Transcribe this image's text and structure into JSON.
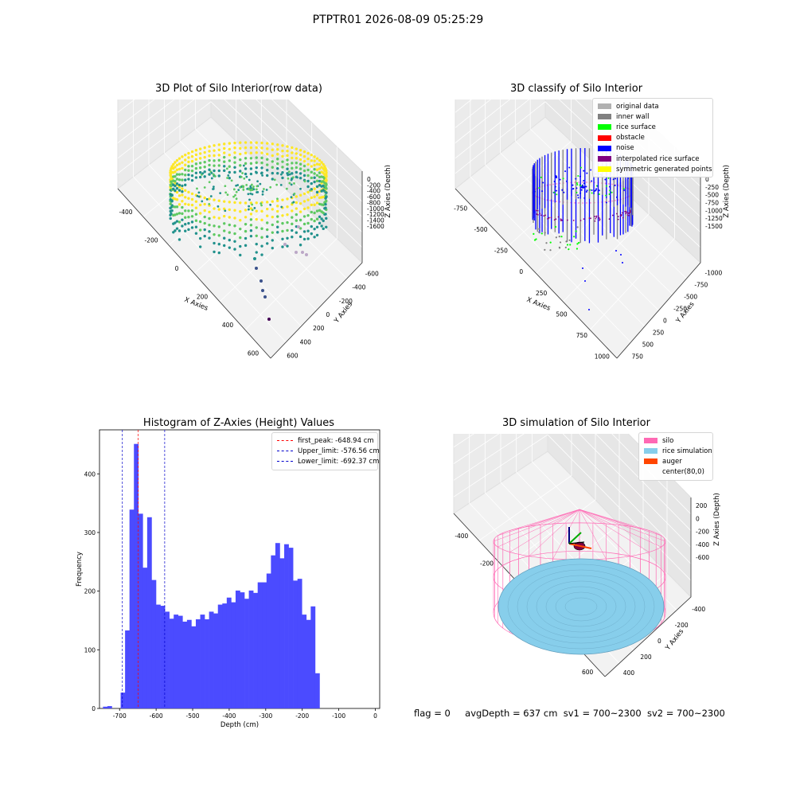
{
  "figure_title": "PTPTR01 2026-08-09 05:25:29",
  "footer": {
    "flag": "flag = 0",
    "avg_depth": "avgDepth = 637 cm",
    "sv1": "sv1 = 700~2300",
    "sv2": "sv2 = 700~2300"
  },
  "chart_data": [
    {
      "type": "scatter",
      "title": "3D Plot of Silo Interior(row data)",
      "xlabel": "X Axies",
      "ylabel": "Y Axies",
      "zlabel": "Z Axies (Depth)",
      "x_ticks": [
        "-400",
        "-200",
        "0",
        "200",
        "400",
        "600"
      ],
      "y_ticks": [
        "-600",
        "-400",
        "-200",
        "0",
        "200",
        "400",
        "600"
      ],
      "z_ticks": [
        "0",
        "-200",
        "-400",
        "-600",
        "-800",
        "-1000",
        "-1200",
        "-1400",
        "-1600"
      ],
      "colormap": [
        "#440154",
        "#3b528b",
        "#21918c",
        "#5ec962",
        "#fde725"
      ]
    },
    {
      "type": "scatter",
      "title": "3D classify of Silo Interior",
      "xlabel": "X Axies",
      "ylabel": "Y Axies",
      "zlabel": "Z Axies (Depth)",
      "x_ticks": [
        "-750",
        "-500",
        "-250",
        "0",
        "250",
        "500",
        "750",
        "1000"
      ],
      "y_ticks": [
        "-1000",
        "-750",
        "-500",
        "-250",
        "0",
        "250",
        "500",
        "750"
      ],
      "z_ticks": [
        "0",
        "-250",
        "-500",
        "-750",
        "-1000",
        "-1250",
        "-1500"
      ],
      "legend": [
        {
          "label": "original data",
          "color": "#b0b0b0"
        },
        {
          "label": "inner wall",
          "color": "#808080"
        },
        {
          "label": "rice surface",
          "color": "#00ff00"
        },
        {
          "label": "obstacle",
          "color": "#ff0000"
        },
        {
          "label": "noise",
          "color": "#0000ff"
        },
        {
          "label": "interpolated rice surface",
          "color": "#800080"
        },
        {
          "label": "symmetric generated points",
          "color": "#ffff00"
        }
      ]
    },
    {
      "type": "bar",
      "title": "Histogram of Z-Axies (Height) Values",
      "xlabel": "Depth (cm)",
      "ylabel": "Frequency",
      "color": "#4b4bff",
      "xlim": [
        -755,
        12
      ],
      "ylim": [
        0,
        475
      ],
      "x_ticks": [
        -700,
        -600,
        -500,
        -400,
        -300,
        -200,
        -100,
        0
      ],
      "y_ticks": [
        0,
        100,
        200,
        300,
        400
      ],
      "bin_start": -745.5,
      "bin_width": 12.1,
      "values": [
        3,
        4,
        0,
        0,
        27,
        133,
        339,
        451,
        332,
        240,
        326,
        219,
        177,
        175,
        165,
        153,
        160,
        158,
        148,
        151,
        140,
        152,
        160,
        152,
        165,
        162,
        177,
        179,
        189,
        181,
        201,
        198,
        187,
        201,
        197,
        215,
        215,
        230,
        261,
        282,
        256,
        280,
        274,
        218,
        221,
        160,
        151,
        174,
        60
      ],
      "vlines": [
        {
          "label": "first_peak: -648.94 cm",
          "x": -648.94,
          "color": "#ff0000"
        },
        {
          "label": "Upper_limit: -576.56 cm",
          "x": -576.56,
          "color": "#0000cc"
        },
        {
          "label": "Lower_limit: -692.37 cm",
          "x": -692.37,
          "color": "#0000cc"
        }
      ]
    },
    {
      "type": "scatter",
      "title": "3D simulation of Silo Interior",
      "xlabel": "X Axies",
      "ylabel": "Y Axies",
      "zlabel": "Z Axies (Depth)",
      "x_ticks": [
        "-400",
        "-200",
        "0",
        "200",
        "400",
        "600"
      ],
      "y_ticks": [
        "-400",
        "-200",
        "0",
        "200",
        "400"
      ],
      "z_ticks": [
        "200",
        "0",
        "-200",
        "-400",
        "-600"
      ],
      "legend": [
        {
          "label": "silo",
          "color": "#ff69b4"
        },
        {
          "label": "rice simulation",
          "color": "#87ceeb"
        },
        {
          "label": "auger",
          "color": "#ff4500"
        },
        {
          "label": "center(80,0)",
          "color": ""
        }
      ]
    }
  ]
}
